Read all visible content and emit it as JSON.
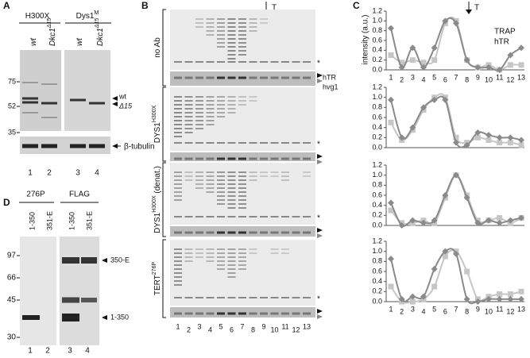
{
  "panel_a": {
    "label": "A",
    "groups": [
      {
        "text": "H300X"
      },
      {
        "text": "Dys1",
        "sup": "M"
      }
    ],
    "lanes": [
      {
        "text": "wt"
      },
      {
        "text": "Dkc1",
        "sup": "Δ15"
      },
      {
        "text": "wt"
      },
      {
        "text": "Dkc1",
        "sup": "Δ15"
      }
    ],
    "markers": [
      "75",
      "52",
      "35"
    ],
    "bands": [
      "wt",
      "Δ15"
    ],
    "loading": "β-tubulin",
    "lane_numbers": [
      "1",
      "2",
      "3",
      "4"
    ]
  },
  "panel_b": {
    "label": "B",
    "arrow": "T",
    "sections": [
      {
        "text": "no Ab"
      },
      {
        "text": "DYS1",
        "sup": "H300X"
      },
      {
        "text": "DYS1",
        "sup": "H300X",
        "suffix": " (denat.)"
      },
      {
        "text": "TERT",
        "sup": "276P"
      }
    ],
    "rna_labels": [
      "hTR",
      "hvg1"
    ],
    "asterisk": "*",
    "lane_numbers": [
      "1",
      "2",
      "3",
      "4",
      "5",
      "6",
      "7",
      "8",
      "9",
      "10",
      "11",
      "12",
      "13"
    ]
  },
  "panel_c": {
    "label": "C",
    "arrow": "T",
    "y_label": "intensity (a.u.)",
    "legend": [
      {
        "name": "TRAP",
        "color": "#8a8a8a"
      },
      {
        "name": "hTR",
        "color": "#c6c6c6"
      }
    ],
    "x": [
      1,
      2,
      3,
      4,
      5,
      6,
      7,
      8,
      9,
      10,
      11,
      12,
      13
    ],
    "ylim": [
      0,
      1.2
    ],
    "yticks": [
      {
        "value": 0,
        "label": "0.0"
      },
      {
        "value": 0.2,
        "label": "0.2"
      },
      {
        "value": 0.4,
        "label": "0.4"
      },
      {
        "value": 0.6,
        "label": "0.6"
      },
      {
        "value": 0.8,
        "label": "0.8"
      },
      {
        "value": 1.0,
        "label": "1.0"
      },
      {
        "value": 1.2,
        "label": "1.2"
      }
    ],
    "charts": [
      {
        "type": "line",
        "series": [
          {
            "values": [
              0.85,
              0.05,
              0.45,
              0.05,
              0.45,
              1.0,
              0.95,
              0.2,
              0.05,
              0.05,
              0.0,
              0.3,
              0.45
            ]
          },
          {
            "values": [
              0.3,
              0.15,
              0.2,
              0.15,
              0.2,
              0.95,
              1.0,
              0.2,
              0.05,
              0.1,
              0.0,
              0.1,
              0.1
            ]
          }
        ]
      },
      {
        "type": "line",
        "series": [
          {
            "values": [
              0.95,
              0.2,
              0.4,
              0.8,
              0.95,
              0.95,
              0.1,
              0.05,
              0.3,
              0.25,
              0.2,
              0.2,
              0.15
            ]
          },
          {
            "values": [
              0.5,
              0.15,
              0.35,
              0.75,
              1.0,
              1.0,
              0.2,
              0.1,
              0.2,
              0.15,
              0.1,
              0.1,
              0.05
            ]
          }
        ]
      },
      {
        "type": "line",
        "series": [
          {
            "values": [
              0.45,
              0.0,
              0.1,
              0.05,
              0.1,
              0.6,
              1.0,
              0.55,
              0.05,
              0.1,
              0.05,
              0.1,
              0.15
            ]
          },
          {
            "values": [
              0.3,
              0.05,
              0.05,
              0.1,
              0.05,
              0.55,
              1.0,
              0.6,
              0.1,
              0.1,
              0.15,
              0.05,
              0.15
            ]
          }
        ]
      },
      {
        "type": "line",
        "series": [
          {
            "values": [
              0.85,
              0.05,
              0.1,
              0.1,
              0.65,
              1.0,
              0.95,
              0.05,
              0.0,
              0.05,
              0.05,
              0.05,
              0.05
            ]
          },
          {
            "values": [
              0.3,
              0.0,
              0.0,
              0.05,
              0.3,
              0.9,
              1.0,
              0.6,
              0.05,
              0.1,
              0.15,
              0.15,
              0.2
            ]
          }
        ]
      }
    ]
  },
  "panel_d": {
    "label": "D",
    "groups": [
      "276P",
      "FLAG"
    ],
    "lanes": [
      "1-350",
      "351-E",
      "1-350",
      "351-E"
    ],
    "markers": [
      "97",
      "66",
      "45",
      "30"
    ],
    "bands": [
      "350-E",
      "1-350"
    ],
    "lane_numbers": [
      "1",
      "2",
      "3",
      "4"
    ]
  }
}
